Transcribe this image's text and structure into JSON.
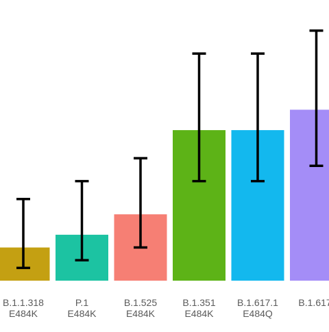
{
  "chart_data": {
    "type": "bar",
    "categories": [
      {
        "line1": "B.1.1.318",
        "line2": "E484K"
      },
      {
        "line1": "P.1",
        "line2": "E484K"
      },
      {
        "line1": "B.1.525",
        "line2": "E484K"
      },
      {
        "line1": "B.1.351",
        "line2": "E484K"
      },
      {
        "line1": "B.1.617.1",
        "line2": "E484Q"
      },
      {
        "line1": "B.1.617.",
        "line2": ""
      }
    ],
    "values": [
      1.3,
      1.8,
      2.6,
      5.9,
      5.9,
      6.7
    ],
    "error_low": [
      0.5,
      0.8,
      1.3,
      3.9,
      3.9,
      4.5
    ],
    "error_high": [
      3.2,
      3.9,
      4.8,
      8.9,
      8.9,
      9.8
    ],
    "colors": [
      "#C4A012",
      "#1CC3A2",
      "#F67F74",
      "#5DB317",
      "#13B8EE",
      "#A48DF7"
    ],
    "ylim": [
      0,
      11
    ],
    "grid": false,
    "title": "",
    "xlabel": "",
    "ylabel": ""
  }
}
